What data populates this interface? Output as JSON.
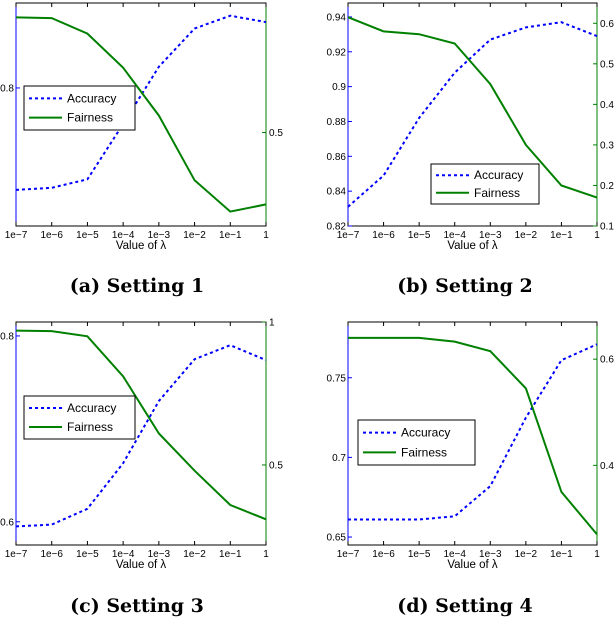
{
  "chart_data": [
    {
      "type": "line",
      "caption": "(a) Setting 1",
      "xlabel": "Value of λ",
      "x": [
        "1e−7",
        "1e−6",
        "1e−5",
        "1e−4",
        "1e−3",
        "1e−2",
        "1e−1",
        "1"
      ],
      "y_left": {
        "ylim": [
          0.735,
          0.84
        ],
        "ticks": [
          0.8
        ],
        "tick_labels": [
          "0.8"
        ],
        "color": "#0000ff"
      },
      "y_right": {
        "ylim": [
          0.24,
          0.86
        ],
        "ticks": [
          0.5
        ],
        "tick_labels": [
          "0.5"
        ],
        "color": "#008000"
      },
      "series": [
        {
          "name": "Accuracy",
          "axis": "left",
          "style": "dotted",
          "color": "#0000ff",
          "values": [
            0.752,
            0.753,
            0.757,
            0.783,
            0.81,
            0.828,
            0.834,
            0.831
          ]
        },
        {
          "name": "Fairness",
          "axis": "right",
          "style": "solid",
          "color": "#008000",
          "values": [
            0.82,
            0.818,
            0.775,
            0.68,
            0.547,
            0.367,
            0.28,
            0.3
          ]
        }
      ],
      "legend": {
        "position": "center-left",
        "entries": [
          "Accuracy",
          "Fairness"
        ]
      }
    },
    {
      "type": "line",
      "caption": "(b) Setting 2",
      "xlabel": "Value of λ",
      "x": [
        "1e−7",
        "1e−6",
        "1e−5",
        "1e−4",
        "1e−3",
        "1e−2",
        "1e−1",
        "1"
      ],
      "y_left": {
        "ylim": [
          0.82,
          0.948
        ],
        "ticks": [
          0.82,
          0.84,
          0.86,
          0.88,
          0.9,
          0.92,
          0.94
        ],
        "tick_labels": [
          "0.82",
          "0.84",
          "0.86",
          "0.88",
          "0.9",
          "0.92",
          "0.94"
        ],
        "color": "#0000ff"
      },
      "y_right": {
        "ylim": [
          0.1,
          0.65
        ],
        "ticks": [
          0.1,
          0.2,
          0.3,
          0.4,
          0.5,
          0.6
        ],
        "tick_labels": [
          "0.1",
          "0.2",
          "0.3",
          "0.4",
          "0.5",
          "0.6"
        ],
        "color": "#008000"
      },
      "series": [
        {
          "name": "Accuracy",
          "axis": "left",
          "style": "dotted",
          "color": "#0000ff",
          "values": [
            0.831,
            0.849,
            0.882,
            0.908,
            0.927,
            0.934,
            0.937,
            0.929
          ]
        },
        {
          "name": "Fairness",
          "axis": "right",
          "style": "solid",
          "color": "#008000",
          "values": [
            0.615,
            0.58,
            0.573,
            0.55,
            0.45,
            0.3,
            0.2,
            0.17
          ]
        }
      ],
      "legend": {
        "position": "bottom-right",
        "entries": [
          "Accuracy",
          "Fairness"
        ]
      }
    },
    {
      "type": "line",
      "caption": "(c) Setting 3",
      "xlabel": "Value of λ",
      "x": [
        "1e−7",
        "1e−6",
        "1e−5",
        "1e−4",
        "1e−3",
        "1e−2",
        "1e−1",
        "1"
      ],
      "y_left": {
        "ylim": [
          0.575,
          0.815
        ],
        "ticks": [
          0.6,
          0.8
        ],
        "tick_labels": [
          "0.6",
          "0.8"
        ],
        "color": "#0000ff"
      },
      "y_right": {
        "ylim": [
          0.22,
          1.0
        ],
        "ticks": [
          0.5,
          1.0
        ],
        "tick_labels": [
          "0.5",
          "1"
        ],
        "color": "#008000"
      },
      "series": [
        {
          "name": "Accuracy",
          "axis": "left",
          "style": "dotted",
          "color": "#0000ff",
          "values": [
            0.595,
            0.597,
            0.614,
            0.663,
            0.73,
            0.775,
            0.79,
            0.774
          ]
        },
        {
          "name": "Fairness",
          "axis": "right",
          "style": "solid",
          "color": "#008000",
          "values": [
            0.97,
            0.968,
            0.95,
            0.81,
            0.61,
            0.48,
            0.36,
            0.31
          ]
        }
      ],
      "legend": {
        "position": "center-left",
        "entries": [
          "Accuracy",
          "Fairness"
        ]
      }
    },
    {
      "type": "line",
      "caption": "(d) Setting 4",
      "xlabel": "Value of λ",
      "x": [
        "1e−7",
        "1e−6",
        "1e−5",
        "1e−4",
        "1e−3",
        "1e−2",
        "1e−1",
        "1"
      ],
      "y_left": {
        "ylim": [
          0.645,
          0.785
        ],
        "ticks": [
          0.65,
          0.7,
          0.75
        ],
        "tick_labels": [
          "0.65",
          "0.7",
          "0.75"
        ],
        "color": "#0000ff"
      },
      "y_right": {
        "ylim": [
          0.25,
          0.67
        ],
        "ticks": [
          0.2,
          0.4,
          0.6
        ],
        "tick_labels": [
          "0.2",
          "0.4",
          "0.6"
        ],
        "color": "#008000"
      },
      "series": [
        {
          "name": "Accuracy",
          "axis": "left",
          "style": "dotted",
          "color": "#0000ff",
          "values": [
            0.661,
            0.661,
            0.661,
            0.663,
            0.682,
            0.725,
            0.761,
            0.771
          ]
        },
        {
          "name": "Fairness",
          "axis": "right",
          "style": "solid",
          "color": "#008000",
          "values": [
            0.64,
            0.64,
            0.64,
            0.633,
            0.615,
            0.545,
            0.35,
            0.27
          ]
        }
      ],
      "legend": {
        "position": "center-left",
        "entries": [
          "Accuracy",
          "Fairness"
        ]
      }
    }
  ]
}
